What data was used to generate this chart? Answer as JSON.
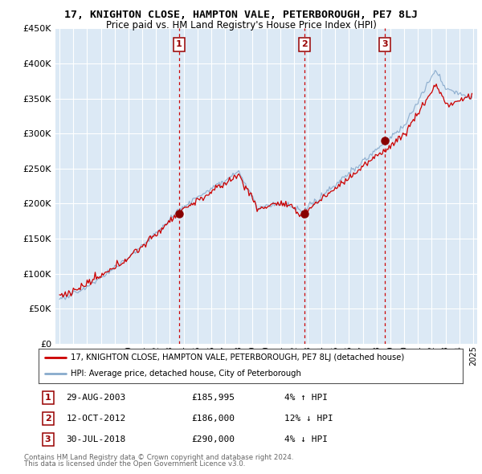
{
  "title1": "17, KNIGHTON CLOSE, HAMPTON VALE, PETERBOROUGH, PE7 8LJ",
  "title2": "Price paid vs. HM Land Registry's House Price Index (HPI)",
  "legend_line1": "17, KNIGHTON CLOSE, HAMPTON VALE, PETERBOROUGH, PE7 8LJ (detached house)",
  "legend_line2": "HPI: Average price, detached house, City of Peterborough",
  "sale_events": [
    {
      "num": 1,
      "date": "29-AUG-2003",
      "price": "£185,995",
      "change": "4% ↑ HPI",
      "year": 2003.66,
      "price_val": 185995
    },
    {
      "num": 2,
      "date": "12-OCT-2012",
      "price": "£186,000",
      "change": "12% ↓ HPI",
      "year": 2012.78,
      "price_val": 186000
    },
    {
      "num": 3,
      "date": "30-JUL-2018",
      "price": "£290,000",
      "change": "4% ↓ HPI",
      "year": 2018.58,
      "price_val": 290000
    }
  ],
  "footnote1": "Contains HM Land Registry data © Crown copyright and database right 2024.",
  "footnote2": "This data is licensed under the Open Government Licence v3.0.",
  "bg_color": "#dce9f5",
  "red_line_color": "#cc0000",
  "blue_line_color": "#88aacc",
  "dashed_color": "#cc0000",
  "marker_color": "#880000",
  "ylim_max": 450000,
  "xlim_start": 1994.7,
  "xlim_end": 2025.3
}
